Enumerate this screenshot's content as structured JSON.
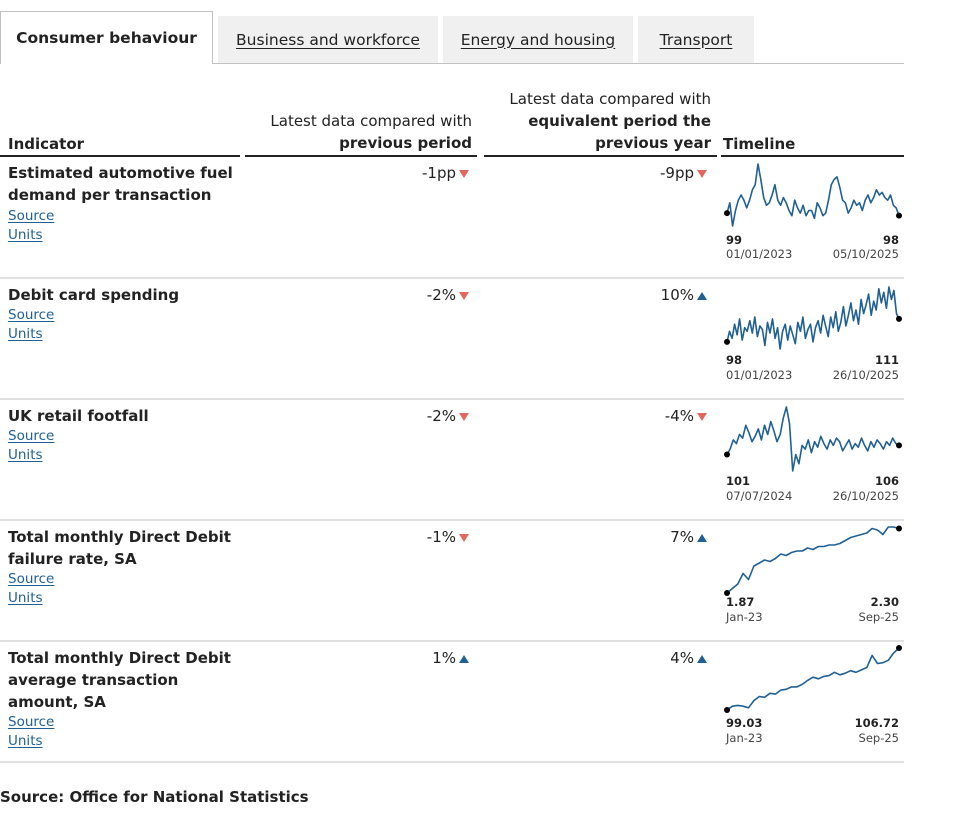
{
  "tabs": [
    {
      "label": "Consumer behaviour",
      "active": true
    },
    {
      "label": "Business and workforce",
      "active": false
    },
    {
      "label": "Energy and housing",
      "active": false
    },
    {
      "label": "Transport",
      "active": false
    }
  ],
  "header": {
    "indicator": "Indicator",
    "prev_line1": "Latest data compared with",
    "prev_line2": "previous period",
    "year_line1": "Latest data compared with",
    "year_line2": "equivalent period the",
    "year_line3": "previous year",
    "timeline": "Timeline"
  },
  "links": {
    "source": "Source",
    "units": "Units"
  },
  "rows": [
    {
      "title": "Estimated automotive fuel demand per transaction",
      "prev": "-1pp",
      "prev_dir": "down",
      "year": "-9pp",
      "year_dir": "down",
      "start_value": "99",
      "end_value": "98",
      "start_label": "01/01/2023",
      "end_label": "05/10/2025",
      "series": [
        99,
        103,
        94,
        100,
        104,
        106,
        104,
        101,
        104,
        108,
        110,
        118,
        112,
        105,
        102,
        103,
        106,
        110,
        104,
        102,
        105,
        103,
        100,
        98,
        104,
        101,
        99,
        102,
        98,
        100,
        100,
        97,
        103,
        101,
        98,
        99,
        104,
        110,
        112,
        113,
        109,
        104,
        103,
        99,
        101,
        104,
        102,
        103,
        100,
        104,
        106,
        103,
        105,
        108,
        106,
        107,
        105,
        104,
        106,
        102,
        101,
        98
      ]
    },
    {
      "title": "Debit card spending",
      "prev": "-2%",
      "prev_dir": "down",
      "year": "10%",
      "year_dir": "up",
      "start_value": "98",
      "end_value": "111",
      "start_label": "01/01/2023",
      "end_label": "26/10/2025",
      "series": [
        98,
        104,
        100,
        108,
        102,
        111,
        99,
        106,
        104,
        110,
        103,
        112,
        101,
        107,
        105,
        96,
        109,
        103,
        111,
        100,
        106,
        94,
        104,
        108,
        99,
        107,
        102,
        97,
        109,
        104,
        112,
        100,
        105,
        108,
        98,
        106,
        110,
        103,
        113,
        107,
        101,
        112,
        106,
        115,
        104,
        109,
        118,
        107,
        113,
        120,
        110,
        116,
        108,
        122,
        114,
        119,
        125,
        113,
        121,
        116,
        128,
        120,
        126,
        117,
        129,
        122,
        127,
        114,
        111
      ]
    },
    {
      "title": "UK retail footfall",
      "prev": "-2%",
      "prev_dir": "down",
      "year": "-4%",
      "year_dir": "down",
      "start_value": "101",
      "end_value": "106",
      "start_label": "07/07/2024",
      "end_label": "26/10/2025",
      "series": [
        101,
        104,
        109,
        107,
        112,
        110,
        117,
        113,
        108,
        111,
        115,
        109,
        117,
        112,
        119,
        114,
        108,
        112,
        121,
        127,
        118,
        92,
        101,
        96,
        106,
        104,
        109,
        102,
        108,
        105,
        111,
        107,
        104,
        109,
        106,
        110,
        108,
        103,
        106,
        109,
        104,
        107,
        105,
        110,
        106,
        103,
        108,
        105,
        109,
        107,
        104,
        108,
        106,
        110,
        107,
        106
      ]
    },
    {
      "title": "Total monthly Direct Debit failure rate, SA",
      "prev": "-1%",
      "prev_dir": "down",
      "year": "7%",
      "year_dir": "up",
      "start_value": "1.87",
      "end_value": "2.30",
      "start_label": "Jan-23",
      "end_label": "Sep-25",
      "series": [
        1.87,
        1.9,
        1.93,
        2.0,
        1.96,
        2.05,
        2.07,
        2.09,
        2.08,
        2.1,
        2.13,
        2.12,
        2.14,
        2.15,
        2.15,
        2.17,
        2.16,
        2.18,
        2.18,
        2.19,
        2.19,
        2.2,
        2.22,
        2.24,
        2.25,
        2.26,
        2.27,
        2.3,
        2.29,
        2.26,
        2.31,
        2.31,
        2.3
      ]
    },
    {
      "title": "Total monthly Direct Debit average transaction amount, SA",
      "prev": "1%",
      "prev_dir": "up",
      "year": "4%",
      "year_dir": "up",
      "start_value": "99.03",
      "end_value": "106.72",
      "start_label": "Jan-23",
      "end_label": "Sep-25",
      "series": [
        99.03,
        99.5,
        99.6,
        99.5,
        99.3,
        100.2,
        100.7,
        100.6,
        101.1,
        101.0,
        101.5,
        101.6,
        101.9,
        101.9,
        102.2,
        102.7,
        103.1,
        102.9,
        103.2,
        103.3,
        103.7,
        103.4,
        103.6,
        103.9,
        103.7,
        104.0,
        104.3,
        105.8,
        104.8,
        104.9,
        105.2,
        106.1,
        106.72
      ]
    }
  ],
  "footer": "Source: Office for National Statistics",
  "colors": {
    "line": "#206095",
    "down": "#e4675f",
    "up": "#206095",
    "link": "#206095"
  }
}
